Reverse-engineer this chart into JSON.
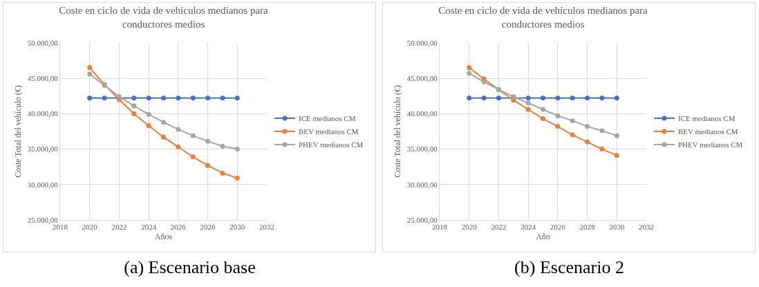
{
  "chart_data": [
    {
      "type": "line",
      "title": "Coste en ciclo de vida de vehículos medianos para\nconductores medios",
      "xlabel": "Años",
      "ylabel": "Coste Total del vehículo (€)",
      "annotations": [
        "(a) Escenario base"
      ],
      "x": [
        2020,
        2021,
        2022,
        2023,
        2024,
        2025,
        2026,
        2027,
        2028,
        2029,
        2030
      ],
      "series": [
        {
          "name": "ICE medianos CM",
          "color": "#4472c4",
          "values": [
            42200,
            42200,
            42200,
            42200,
            42200,
            42200,
            42200,
            42200,
            42200,
            42200,
            42200
          ]
        },
        {
          "name": "BEV medianos CM",
          "color": "#ed7d31",
          "values": [
            46500,
            44100,
            42000,
            40000,
            38300,
            36700,
            35300,
            33900,
            32700,
            31600,
            30900
          ]
        },
        {
          "name": "PHEV medianos CM",
          "color": "#a5a5a5",
          "values": [
            45600,
            44000,
            42400,
            41100,
            39900,
            38800,
            37800,
            36900,
            36100,
            35400,
            35000
          ]
        }
      ],
      "xlim": [
        2018,
        2032
      ],
      "xticks": [
        2018,
        2020,
        2022,
        2024,
        2026,
        2028,
        2030,
        2032
      ],
      "ylim": [
        25000,
        50000
      ],
      "yticks": [
        {
          "value": 25000,
          "label": "25.000,00"
        },
        {
          "value": 30000,
          "label": "30.000,00"
        },
        {
          "value": 35000,
          "label": "35.000,00"
        },
        {
          "value": 40000,
          "label": "40.000,00"
        },
        {
          "value": 45000,
          "label": "45.000,00"
        },
        {
          "value": 50000,
          "label": "50.000,00"
        }
      ],
      "grid": true,
      "legend": "right",
      "marker": "circle",
      "line_style": "solid"
    },
    {
      "type": "line",
      "title": "Coste en ciclo de vida de vehículos medianos para\nconductores medios",
      "xlabel": "Año",
      "ylabel": "Coste Total del vehículo (€)",
      "annotations": [
        "(b) Escenario 2"
      ],
      "x": [
        2020,
        2021,
        2022,
        2023,
        2024,
        2025,
        2026,
        2027,
        2028,
        2029,
        2030
      ],
      "series": [
        {
          "name": "ICE medianos CM",
          "color": "#4472c4",
          "values": [
            42200,
            42200,
            42200,
            42200,
            42200,
            42200,
            42200,
            42200,
            42200,
            42200,
            42200
          ]
        },
        {
          "name": "BEV medianos CM",
          "color": "#ed7d31",
          "values": [
            46500,
            44900,
            43400,
            41900,
            40600,
            39300,
            38200,
            37000,
            36000,
            35000,
            34100
          ]
        },
        {
          "name": "PHEV medianos CM",
          "color": "#a5a5a5",
          "values": [
            45700,
            44500,
            43400,
            42400,
            41500,
            40600,
            39700,
            39000,
            38200,
            37600,
            36900
          ]
        }
      ],
      "xlim": [
        2018,
        2032
      ],
      "xticks": [
        2018,
        2020,
        2022,
        2024,
        2026,
        2028,
        2030,
        2032
      ],
      "ylim": [
        25000,
        50000
      ],
      "yticks": [
        {
          "value": 25000,
          "label": "25.000,00"
        },
        {
          "value": 30000,
          "label": "30.000,00"
        },
        {
          "value": 35000,
          "label": "35.000,00"
        },
        {
          "value": 40000,
          "label": "40.000,00"
        },
        {
          "value": 45000,
          "label": "45.000,00"
        },
        {
          "value": 50000,
          "label": "50.000,00"
        }
      ],
      "grid": true,
      "legend": "right",
      "marker": "circle",
      "line_style": "solid"
    }
  ]
}
